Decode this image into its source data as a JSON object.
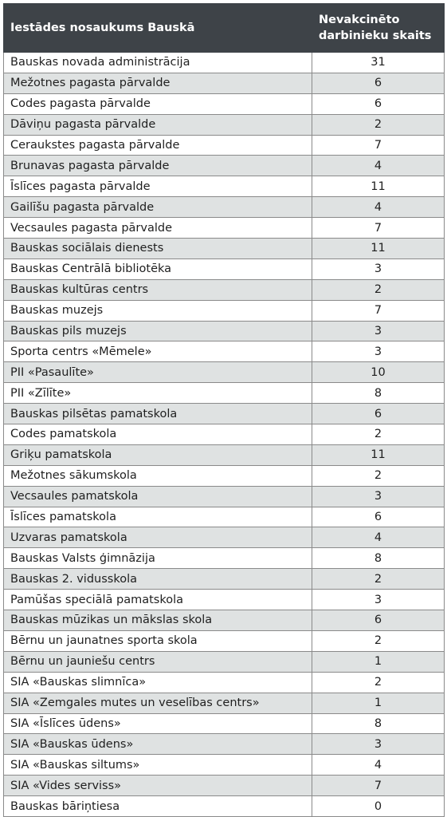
{
  "table": {
    "header": {
      "col1": "Iestādes nosaukums Bauskā",
      "col2_line1": "Nevakcinēto",
      "col2_line2": "darbinieku skaits"
    },
    "rows": [
      {
        "name": "Bauskas novada administrācija",
        "count": "31"
      },
      {
        "name": "Mežotnes pagasta pārvalde",
        "count": "6"
      },
      {
        "name": "Codes pagasta pārvalde",
        "count": "6"
      },
      {
        "name": "Dāviņu pagasta pārvalde",
        "count": "2"
      },
      {
        "name": "Ceraukstes pagasta pārvalde",
        "count": "7"
      },
      {
        "name": "Brunavas pagasta pārvalde",
        "count": "4"
      },
      {
        "name": "Īslīces pagasta pārvalde",
        "count": "11"
      },
      {
        "name": "Gailīšu pagasta pārvalde",
        "count": "4"
      },
      {
        "name": "Vecsaules pagasta pārvalde",
        "count": "7"
      },
      {
        "name": "Bauskas sociālais dienests",
        "count": "11"
      },
      {
        "name": "Bauskas Centrālā bibliotēka",
        "count": "3"
      },
      {
        "name": "Bauskas kultūras centrs",
        "count": "2"
      },
      {
        "name": "Bauskas muzejs",
        "count": "7"
      },
      {
        "name": "Bauskas pils muzejs",
        "count": "3"
      },
      {
        "name": "Sporta centrs «Mēmele»",
        "count": "3"
      },
      {
        "name": "PII «Pasaulīte»",
        "count": "10"
      },
      {
        "name": "PII «Zīlīte»",
        "count": "8"
      },
      {
        "name": "Bauskas pilsētas pamatskola",
        "count": "6"
      },
      {
        "name": "Codes pamatskola",
        "count": "2"
      },
      {
        "name": "Griķu pamatskola",
        "count": "11"
      },
      {
        "name": "Mežotnes sākumskola",
        "count": "2"
      },
      {
        "name": "Vecsaules pamatskola",
        "count": "3"
      },
      {
        "name": "Īslīces pamatskola",
        "count": "6"
      },
      {
        "name": "Uzvaras pamatskola",
        "count": "4"
      },
      {
        "name": "Bauskas Valsts ģimnāzija",
        "count": "8"
      },
      {
        "name": "Bauskas 2. vidusskola",
        "count": "2"
      },
      {
        "name": "Pamūšas speciālā pamatskola",
        "count": "3"
      },
      {
        "name": "Bauskas mūzikas un mākslas skola",
        "count": "6"
      },
      {
        "name": "Bērnu un jaunatnes sporta skola",
        "count": "2"
      },
      {
        "name": "Bērnu un jauniešu centrs",
        "count": "1"
      },
      {
        "name": "SIA «Bauskas slimnīca»",
        "count": "2"
      },
      {
        "name": "SIA «Zemgales mutes un veselības centrs»",
        "count": "1"
      },
      {
        "name": "SIA «Īslīces ūdens»",
        "count": "8"
      },
      {
        "name": "SIA «Bauskas ūdens»",
        "count": "3"
      },
      {
        "name": "SIA «Bauskas siltums»",
        "count": "4"
      },
      {
        "name": "SIA «Vides serviss»",
        "count": "7"
      },
      {
        "name": "Bauskas bāriņtiesa",
        "count": "0"
      }
    ]
  }
}
